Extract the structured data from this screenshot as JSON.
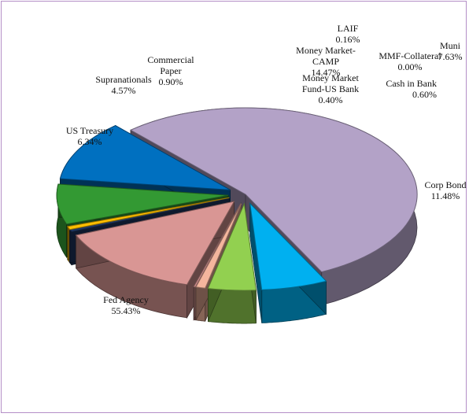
{
  "chart_data": {
    "type": "pie",
    "title": "",
    "slices": [
      {
        "name": "Fed Agency",
        "label_lines": [
          "Fed Agency",
          "55.43%"
        ],
        "value": 55.43,
        "color": "#b3a2c7"
      },
      {
        "name": "US Treasury",
        "label_lines": [
          "US Treasury",
          "6.34%"
        ],
        "value": 6.34,
        "color": "#00b0f0"
      },
      {
        "name": "Supranationals",
        "label_lines": [
          "Supranationals",
          "4.57%"
        ],
        "value": 4.57,
        "color": "#92d050"
      },
      {
        "name": "Commercial Paper",
        "label_lines": [
          "Commercial",
          "Paper",
          "0.90%"
        ],
        "value": 0.9,
        "color": "#f4b59d"
      },
      {
        "name": "LAIF",
        "label_lines": [
          "LAIF",
          "0.16%"
        ],
        "value": 0.16,
        "color": "#d99694",
        "exploded": false
      },
      {
        "name": "Money Market-CAMP",
        "label_lines": [
          "Money Market-",
          "CAMP",
          "14.47%"
        ],
        "value": 14.47,
        "color": "#d99694"
      },
      {
        "name": "Money Market Fund-US Bank",
        "label_lines": [
          "Money Market",
          "Fund-US Bank",
          "0.40%"
        ],
        "value": 0.4,
        "color": "#1f3864"
      },
      {
        "name": "MMF-Collateral",
        "label_lines": [
          "MMF-Collateral",
          "0.00%"
        ],
        "value": 0.0,
        "color": "#7f7f7f"
      },
      {
        "name": "Cash in Bank",
        "label_lines": [
          "Cash in Bank",
          "0.60%"
        ],
        "value": 0.6,
        "color": "#ffc000"
      },
      {
        "name": "Muni",
        "label_lines": [
          "Muni",
          "7.63%"
        ],
        "value": 7.63,
        "color": "#339933"
      },
      {
        "name": "Corp Bond",
        "label_lines": [
          "Corp Bond",
          "11.48%"
        ],
        "value": 11.48,
        "color": "#0070c0"
      }
    ]
  }
}
